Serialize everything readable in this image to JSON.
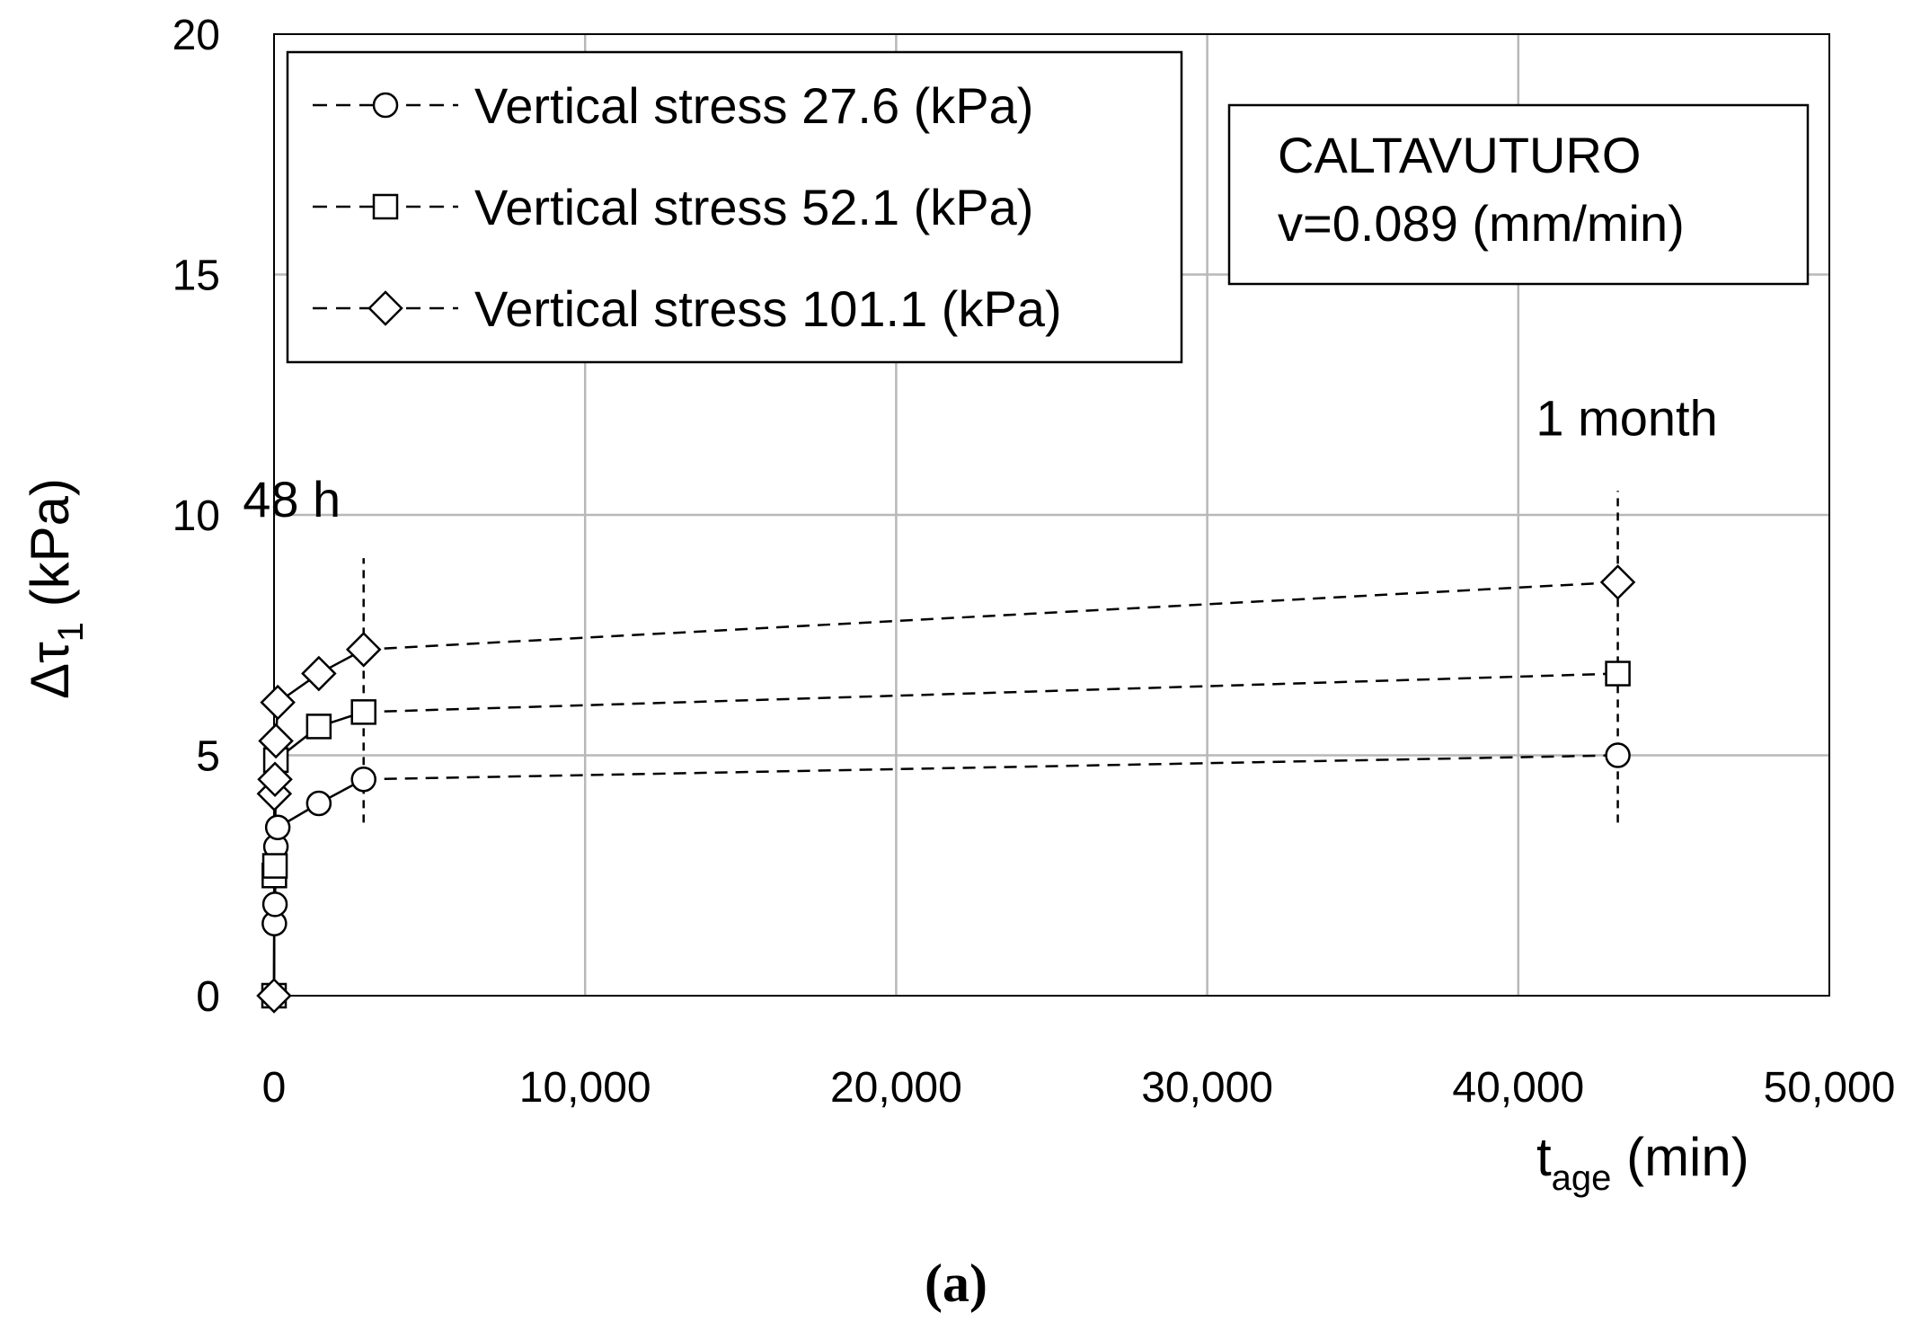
{
  "chart_data": {
    "type": "scatter",
    "xlabel": "t",
    "xlabel_sub": "age",
    "xlabel_unit": " (min)",
    "ylabel": "Δτ",
    "ylabel_sub": "1",
    "ylabel_unit": " (kPa)",
    "xlim": [
      0,
      50000
    ],
    "ylim": [
      0,
      20
    ],
    "xticks": [
      0,
      10000,
      20000,
      30000,
      40000,
      50000
    ],
    "xtick_labels": [
      "0",
      "10,000",
      "20,000",
      "30,000",
      "40,000",
      "50,000"
    ],
    "yticks": [
      0,
      5,
      10,
      15,
      20
    ],
    "ytick_labels": [
      "0",
      "5",
      "10",
      "15",
      "20"
    ],
    "grid": true,
    "legend_position": "top-left",
    "series": [
      {
        "name": "Vertical stress 27.6 (kPa)",
        "marker": "circle",
        "x": [
          0,
          10,
          30,
          60,
          120,
          1440,
          2880,
          43200
        ],
        "y": [
          0,
          1.5,
          1.9,
          3.1,
          3.5,
          4.0,
          4.5,
          5.0
        ]
      },
      {
        "name": "Vertical stress 52.1 (kPa)",
        "marker": "square",
        "x": [
          0,
          10,
          30,
          60,
          1440,
          2880,
          43200
        ],
        "y": [
          0,
          2.5,
          2.7,
          4.9,
          5.6,
          5.9,
          6.7
        ]
      },
      {
        "name": "Vertical stress 101.1 (kPa)",
        "marker": "diamond",
        "x": [
          0,
          10,
          30,
          60,
          120,
          1440,
          2880,
          43200
        ],
        "y": [
          0,
          4.2,
          4.5,
          5.3,
          6.1,
          6.7,
          7.2,
          8.6
        ]
      }
    ],
    "reference_lines": [
      {
        "label": "48 h",
        "x": 2880,
        "y_from": 3.6,
        "y_to": 9.1
      },
      {
        "label": "1 month",
        "x": 43200,
        "y_from": 3.6,
        "y_to": 10.5
      }
    ],
    "info_box": [
      "CALTAVUTURO",
      "v=0.089 (mm/min)"
    ],
    "caption": "(a)"
  }
}
